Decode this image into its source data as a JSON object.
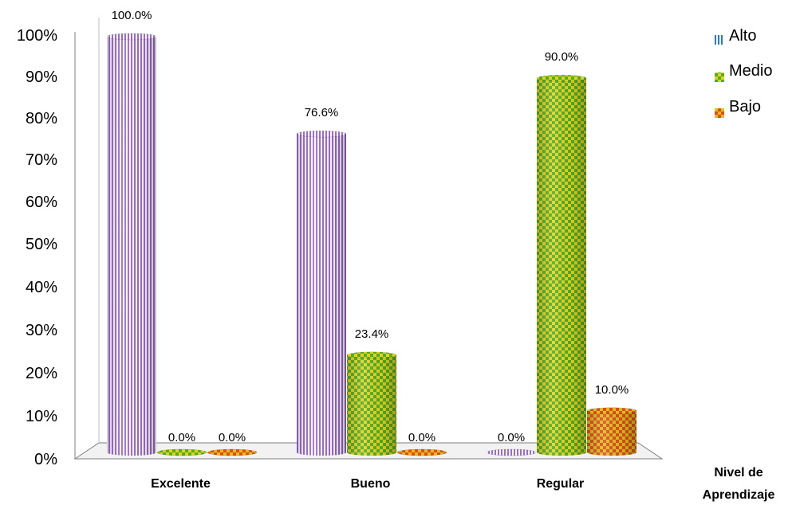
{
  "chart_data": {
    "type": "bar",
    "categories": [
      "Excelente",
      "Bueno",
      "Regular"
    ],
    "series": [
      {
        "name": "Alto",
        "values": [
          100.0,
          76.6,
          0.0
        ],
        "labels": [
          "100.0%",
          "76.6%",
          "0.0%"
        ]
      },
      {
        "name": "Medio",
        "values": [
          0.0,
          23.4,
          90.0
        ],
        "labels": [
          "0.0%",
          "23.4%",
          "90.0%"
        ]
      },
      {
        "name": "Bajo",
        "values": [
          0.0,
          0.0,
          10.0
        ],
        "labels": [
          "0.0%",
          "0.0%",
          "10.0%"
        ]
      }
    ],
    "xlabel_line1": "Nivel de",
    "xlabel_line2": "Aprendizaje",
    "ylabel": "",
    "ylim": [
      0,
      100
    ],
    "yticks": [
      "0%",
      "10%",
      "20%",
      "30%",
      "40%",
      "50%",
      "60%",
      "70%",
      "80%",
      "90%",
      "100%"
    ],
    "legend_position": "right",
    "colors": {
      "Alto": {
        "base": "#9b59c9",
        "stripe": "#ffffff",
        "shade": "#6c3a94"
      },
      "Medio": {
        "base": "#5cb85c",
        "check": "#e6d21a",
        "shade": "#3a7a2a"
      },
      "Bajo": {
        "base": "#e84a20",
        "check": "#d9c21a",
        "shade": "#9a2a10"
      }
    },
    "style": "3d-cylinder"
  }
}
